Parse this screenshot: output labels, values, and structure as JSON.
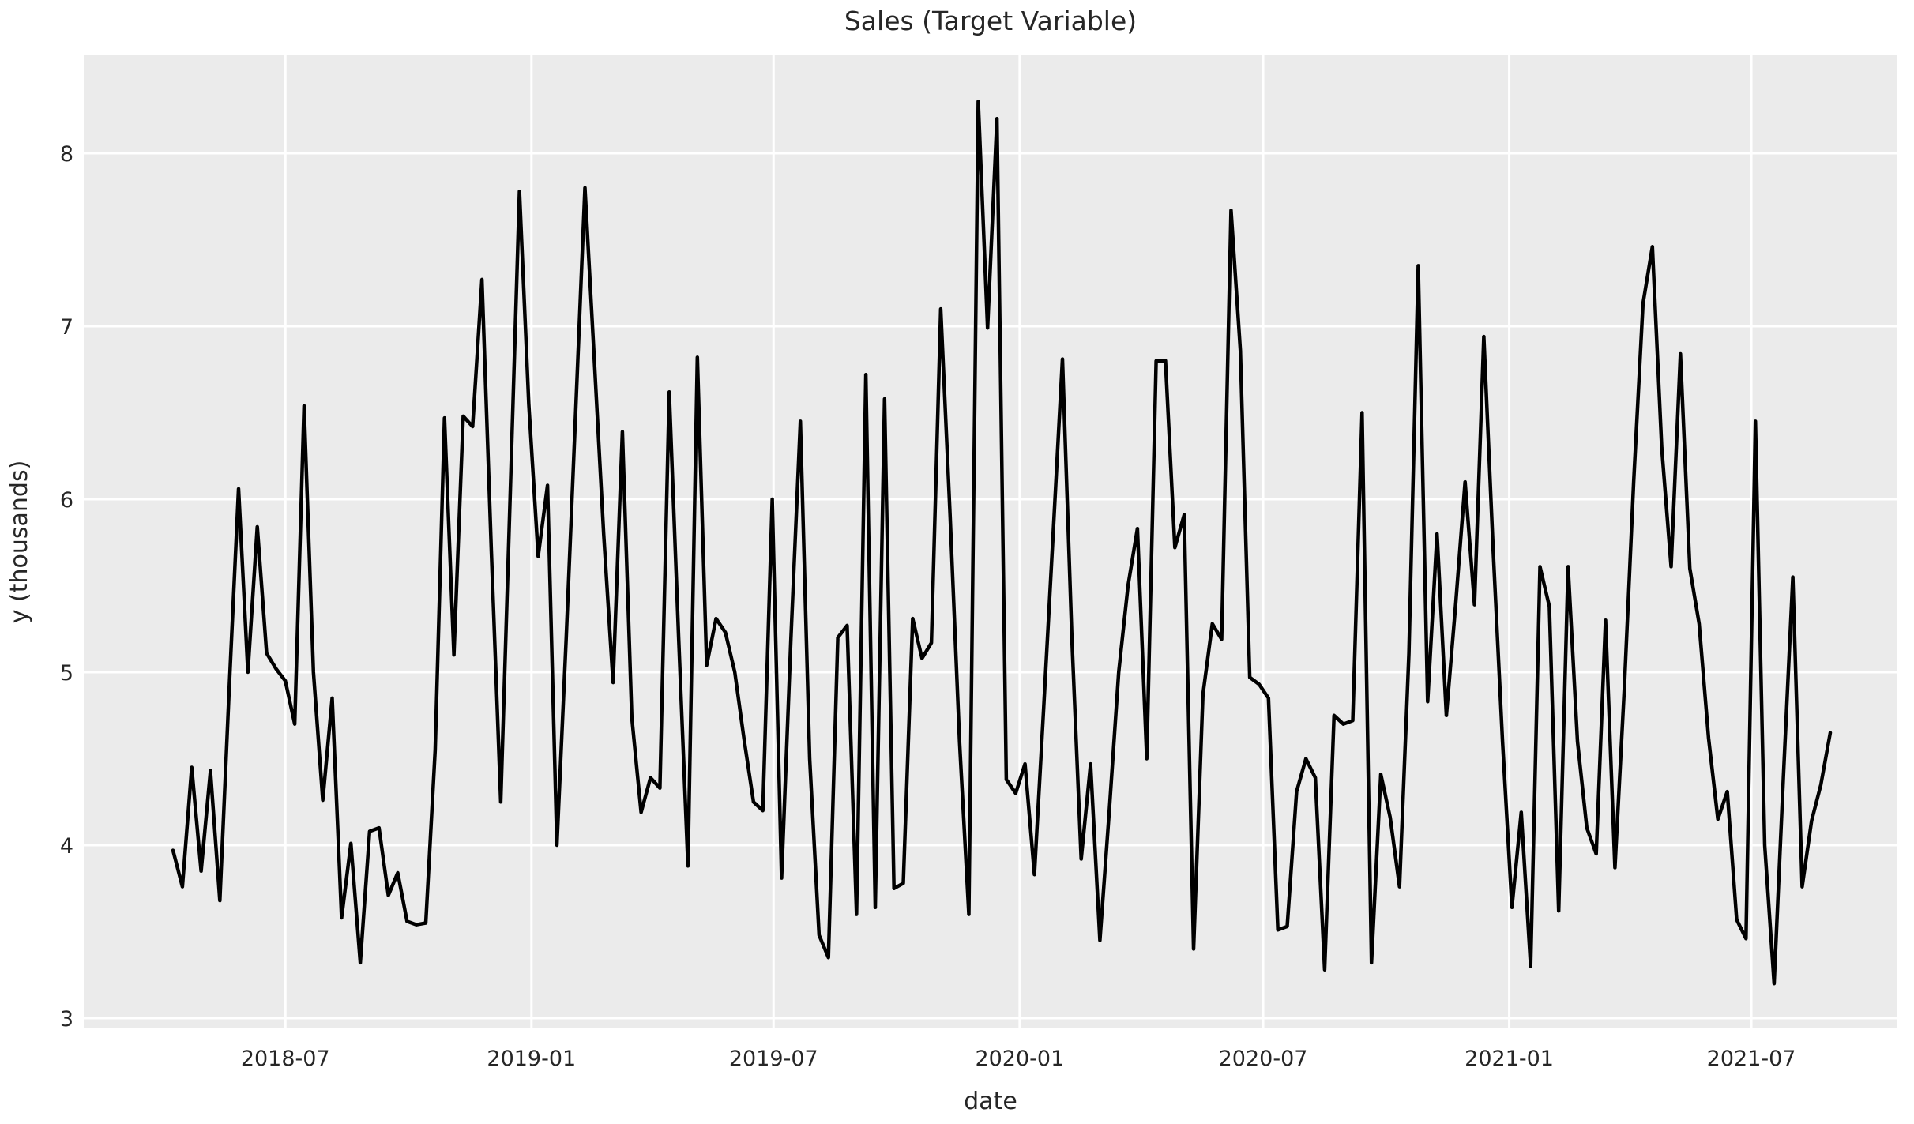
{
  "figure": {
    "title": "Sales (Target Variable)",
    "xlabel": "date",
    "ylabel": "y (thousands)"
  },
  "chart_data": {
    "type": "line",
    "title": "Sales (Target Variable)",
    "xlabel": "date",
    "ylabel": "y (thousands)",
    "legend": "none",
    "grid": "on",
    "background_color": "#ebebeb",
    "grid_color": "#ffffff",
    "line_color": "#000000",
    "text_color": "#262626",
    "y_ticks": [
      3,
      4,
      5,
      6,
      7,
      8
    ],
    "ylim": [
      2.94,
      8.57
    ],
    "x_tick_labels": [
      "2018-07",
      "2019-01",
      "2019-07",
      "2020-01",
      "2020-07",
      "2021-01",
      "2021-07"
    ],
    "x_tick_dates": [
      "2018-07-01",
      "2019-01-01",
      "2019-07-01",
      "2020-01-01",
      "2020-07-01",
      "2021-01-01",
      "2021-07-01"
    ],
    "series": [
      {
        "name": "y",
        "start_date": "2018-04-08",
        "freq_days": 7,
        "values": [
          3.97,
          3.76,
          4.45,
          3.85,
          4.43,
          3.68,
          4.9,
          6.06,
          5.0,
          5.84,
          5.11,
          5.02,
          4.95,
          4.7,
          6.54,
          5.0,
          4.26,
          4.85,
          3.58,
          4.01,
          3.32,
          4.08,
          4.1,
          3.71,
          3.84,
          3.56,
          3.54,
          3.55,
          4.55,
          6.47,
          5.1,
          6.48,
          6.42,
          7.27,
          5.7,
          4.25,
          6.0,
          7.78,
          6.55,
          5.67,
          6.08,
          4.0,
          5.2,
          6.5,
          7.8,
          6.8,
          5.8,
          4.94,
          6.39,
          4.74,
          4.19,
          4.39,
          4.33,
          6.62,
          5.2,
          3.88,
          6.82,
          5.04,
          5.31,
          5.23,
          5.0,
          4.61,
          4.25,
          4.2,
          6.0,
          3.81,
          5.2,
          6.45,
          4.5,
          3.48,
          3.35,
          5.2,
          5.27,
          3.6,
          6.72,
          3.64,
          6.58,
          3.75,
          3.78,
          5.31,
          5.08,
          5.17,
          7.1,
          5.9,
          4.6,
          3.6,
          8.3,
          6.99,
          8.2,
          4.38,
          4.3,
          4.47,
          3.83,
          4.8,
          5.8,
          6.81,
          5.2,
          3.92,
          4.47,
          3.45,
          4.2,
          5.0,
          5.5,
          5.83,
          4.5,
          6.8,
          6.8,
          5.72,
          5.91,
          3.4,
          4.87,
          5.28,
          5.19,
          7.67,
          6.86,
          4.97,
          4.93,
          4.85,
          3.51,
          3.53,
          4.31,
          4.5,
          4.39,
          3.28,
          4.75,
          4.7,
          4.72,
          6.5,
          3.32,
          4.41,
          4.16,
          3.76,
          5.11,
          7.35,
          4.83,
          5.8,
          4.75,
          5.4,
          6.1,
          5.39,
          6.94,
          5.7,
          4.6,
          3.64,
          4.19,
          3.3,
          5.61,
          5.38,
          3.62,
          5.61,
          4.6,
          4.1,
          3.95,
          5.3,
          3.87,
          4.9,
          6.1,
          7.13,
          7.46,
          6.3,
          5.61,
          6.84,
          5.6,
          5.28,
          4.62,
          4.15,
          4.31,
          3.57,
          3.46,
          6.45,
          4.0,
          3.2,
          4.4,
          5.55,
          3.76,
          4.14,
          4.35,
          4.65
        ]
      }
    ]
  }
}
